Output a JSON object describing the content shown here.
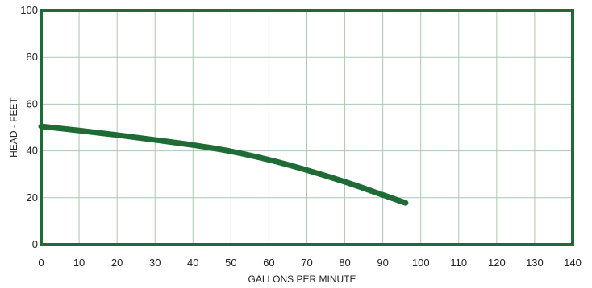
{
  "chart_data": {
    "type": "line",
    "title": "",
    "xlabel": "GALLONS PER MINUTE",
    "ylabel": "HEAD - FEET",
    "xlim": [
      0,
      140
    ],
    "ylim": [
      0,
      100
    ],
    "xticks": [
      0,
      10,
      20,
      30,
      40,
      50,
      60,
      70,
      80,
      90,
      100,
      110,
      120,
      130,
      140
    ],
    "yticks": [
      0,
      20,
      40,
      60,
      80,
      100
    ],
    "grid": true,
    "legend": "none",
    "series": [
      {
        "x": [
          0,
          10,
          20,
          30,
          40,
          50,
          60,
          70,
          80,
          90,
          96
        ],
        "y": [
          50.5,
          48.7,
          46.8,
          44.7,
          42.5,
          39.8,
          36.2,
          31.8,
          26.8,
          21.2,
          17.8
        ]
      }
    ]
  },
  "colors": {
    "frame": "#1e6b35",
    "grid": "#a9c9b3",
    "curve": "#1e6b35",
    "text": "#222222"
  }
}
